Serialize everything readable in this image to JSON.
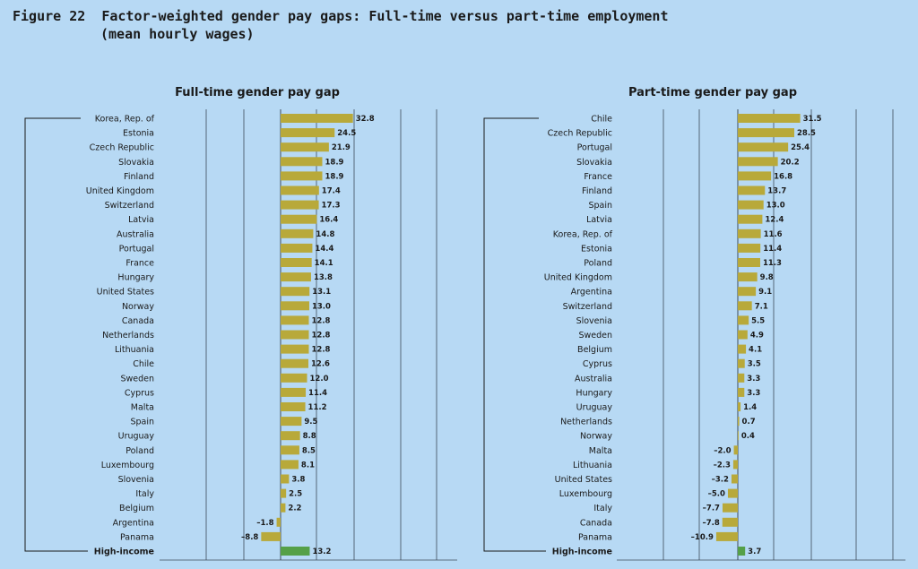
{
  "figure": {
    "label": "Figure 22",
    "title_line1": "Factor-weighted gender pay gaps: Full-time versus part-time employment",
    "title_line2": "(mean hourly wages)"
  },
  "colors": {
    "bar": "#b8a93a",
    "highlight": "#55a048",
    "grid": "#3c4a5a",
    "background": "#b7d9f4"
  },
  "chart_data": [
    {
      "type": "bar",
      "orientation": "horizontal",
      "title": "Full-time gender pay gap",
      "categories": [
        "Korea, Rep. of",
        "Estonia",
        "Czech Republic",
        "Slovakia",
        "Finland",
        "United Kingdom",
        "Switzerland",
        "Latvia",
        "Australia",
        "Portugal",
        "France",
        "Hungary",
        "United States",
        "Norway",
        "Canada",
        "Netherlands",
        "Lithuania",
        "Chile",
        "Sweden",
        "Cyprus",
        "Malta",
        "Spain",
        "Uruguay",
        "Poland",
        "Luxembourg",
        "Slovenia",
        "Italy",
        "Belgium",
        "Argentina",
        "Panama",
        "High-income"
      ],
      "values": [
        32.8,
        24.5,
        21.9,
        18.9,
        18.9,
        17.4,
        17.3,
        16.4,
        14.8,
        14.4,
        14.1,
        13.8,
        13.1,
        13.0,
        12.8,
        12.8,
        12.8,
        12.6,
        12.0,
        11.4,
        11.2,
        9.5,
        8.8,
        8.5,
        8.1,
        3.8,
        2.5,
        2.2,
        -1.8,
        -8.8,
        13.2
      ],
      "value_labels": [
        "32.8",
        "24.5",
        "21.9",
        "18.9",
        "18.9",
        "17.4",
        "17.3",
        "16.4",
        "14.8",
        "14.4",
        "14.1",
        "13.8",
        "13.1",
        "13.0",
        "12.8",
        "12.8",
        "12.8",
        "12.6",
        "12.0",
        "11.4",
        "11.2",
        "9.5",
        "8.8",
        "8.5",
        "8.1",
        "3.8",
        "2.5",
        "2.2",
        "–1.8",
        "–8.8",
        "13.2"
      ],
      "highlight_category": "High-income",
      "grid": true
    },
    {
      "type": "bar",
      "orientation": "horizontal",
      "title": "Part-time gender pay gap",
      "categories": [
        "Chile",
        "Czech Republic",
        "Portugal",
        "Slovakia",
        "France",
        "Finland",
        "Spain",
        "Latvia",
        "Korea, Rep. of",
        "Estonia",
        "Poland",
        "United Kingdom",
        "Argentina",
        "Switzerland",
        "Slovenia",
        "Sweden",
        "Belgium",
        "Cyprus",
        "Australia",
        "Hungary",
        "Uruguay",
        "Netherlands",
        "Norway",
        "Malta",
        "Lithuania",
        "United States",
        "Luxembourg",
        "Italy",
        "Canada",
        "Panama",
        "High-income"
      ],
      "values": [
        31.5,
        28.5,
        25.4,
        20.2,
        16.8,
        13.7,
        13.0,
        12.4,
        11.6,
        11.4,
        11.3,
        9.8,
        9.1,
        7.1,
        5.5,
        4.9,
        4.1,
        3.5,
        3.3,
        3.3,
        1.4,
        0.7,
        0.4,
        -2.0,
        -2.3,
        -3.2,
        -5.0,
        -7.7,
        -7.8,
        -10.9,
        3.7
      ],
      "value_labels": [
        "31.5",
        "28.5",
        "25.4",
        "20.2",
        "16.8",
        "13.7",
        "13.0",
        "12.4",
        "11.6",
        "11.4",
        "11.3",
        "9.8",
        "9.1",
        "7.1",
        "5.5",
        "4.9",
        "4.1",
        "3.5",
        "3.3",
        "3.3",
        "1.4",
        "0.7",
        "0.4",
        "–2.0",
        "–2.3",
        "–3.2",
        "–5.0",
        "–7.7",
        "–7.8",
        "–10.9",
        "3.7"
      ],
      "highlight_category": "High-income",
      "grid": true
    }
  ]
}
